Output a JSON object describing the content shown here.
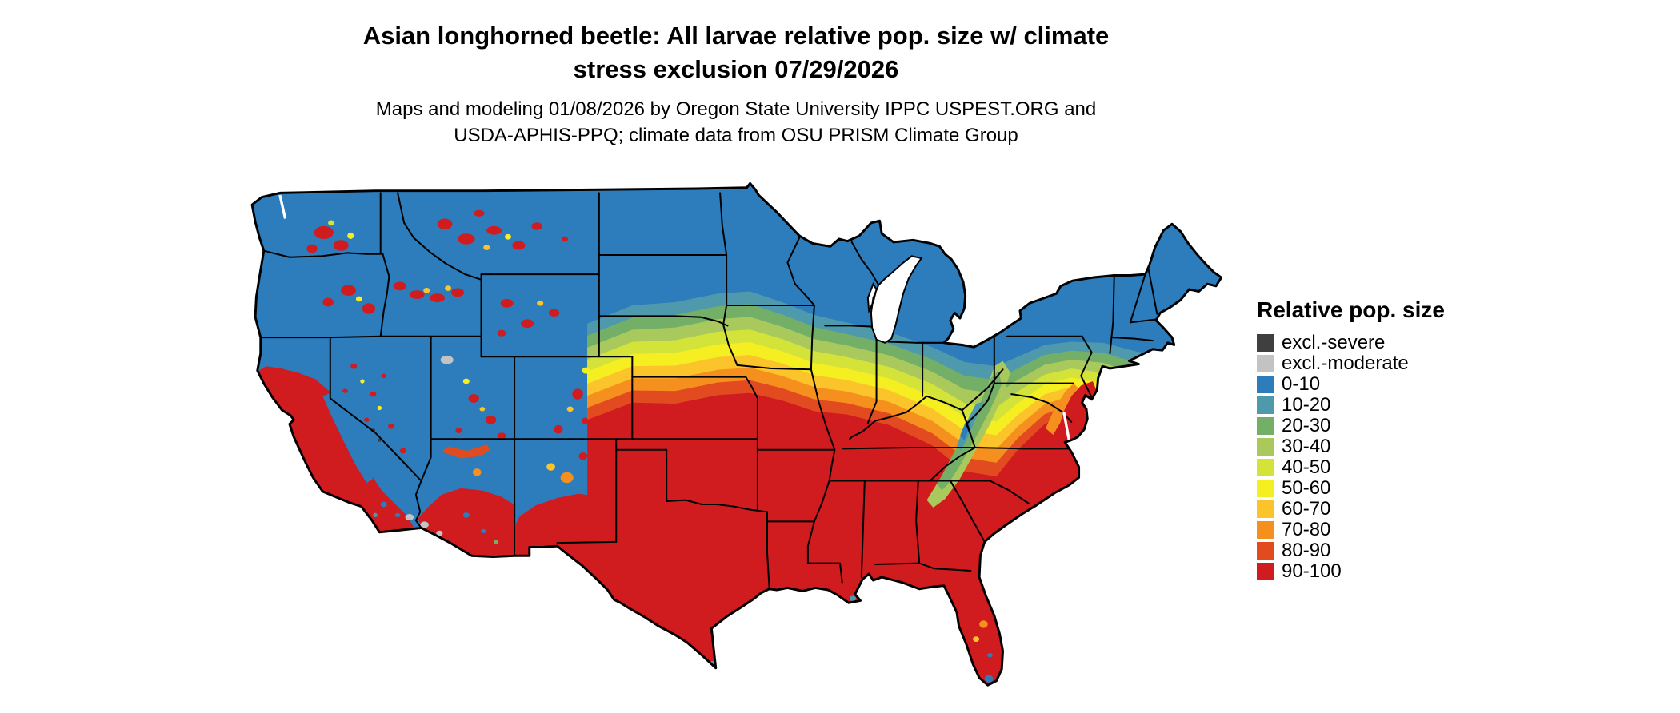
{
  "title": {
    "line1": "Asian longhorned beetle: All larvae relative pop. size w/ climate",
    "line2": "stress exclusion 07/29/2026"
  },
  "subtitle": {
    "line1": "Maps and modeling 01/08/2026 by Oregon State University IPPC USPEST.ORG and",
    "line2": "USDA-APHIS-PPQ; climate data from OSU PRISM Climate Group"
  },
  "legend": {
    "title": "Relative pop. size",
    "items": [
      {
        "label": "excl.-severe",
        "key": "excl_severe"
      },
      {
        "label": "excl.-moderate",
        "key": "excl_moderate"
      },
      {
        "label": "0-10",
        "key": "c0_10"
      },
      {
        "label": "10-20",
        "key": "c10_20"
      },
      {
        "label": "20-30",
        "key": "c20_30"
      },
      {
        "label": "30-40",
        "key": "c30_40"
      },
      {
        "label": "40-50",
        "key": "c40_50"
      },
      {
        "label": "50-60",
        "key": "c50_60"
      },
      {
        "label": "60-70",
        "key": "c60_70"
      },
      {
        "label": "70-80",
        "key": "c70_80"
      },
      {
        "label": "80-90",
        "key": "c80_90"
      },
      {
        "label": "90-100",
        "key": "c90_100"
      }
    ]
  },
  "map": {
    "palette": {
      "excl_severe": "#3f3f3f",
      "excl_moderate": "#c3c3c3",
      "c0_10": "#2d7cbb",
      "c10_20": "#4f99ad",
      "c20_30": "#74af68",
      "c30_40": "#a9c95c",
      "c40_50": "#d4e33a",
      "c50_60": "#f5ee20",
      "c60_70": "#fcc42b",
      "c70_80": "#f5901e",
      "c80_90": "#e24a1f",
      "c90_100": "#d01b1f"
    }
  }
}
